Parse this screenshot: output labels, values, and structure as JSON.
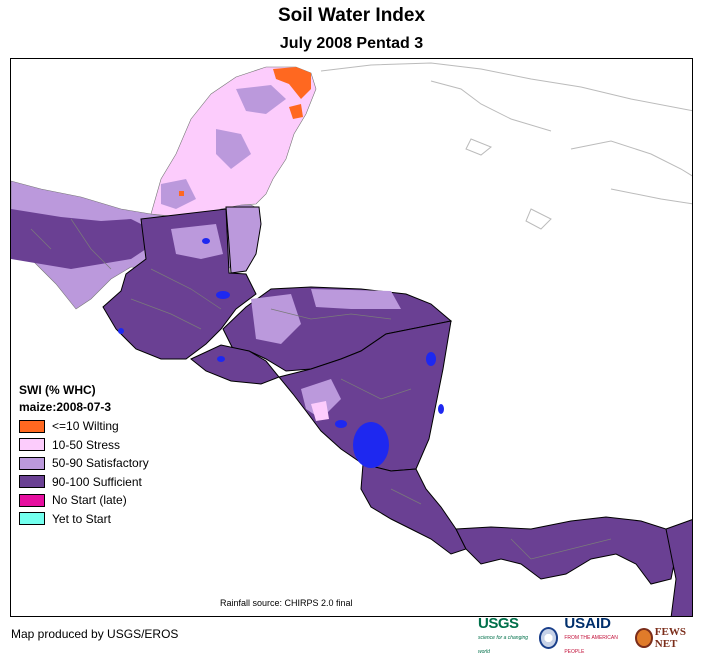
{
  "title": "Soil Water Index",
  "subtitle": "July 2008 Pentad 3",
  "legend": {
    "title": "SWI (% WHC)",
    "subtitle": "maize:2008-07-3",
    "items": [
      {
        "label": "<=10 Wilting",
        "color": "#ff6820"
      },
      {
        "label": "10-50 Stress",
        "color": "#fcccfc"
      },
      {
        "label": "50-90 Satisfactory",
        "color": "#bb99dc"
      },
      {
        "label": "90-100 Sufficient",
        "color": "#6a4093"
      },
      {
        "label": "No Start (late)",
        "color": "#e60e9f"
      },
      {
        "label": "Yet to Start",
        "color": "#73ffee"
      }
    ]
  },
  "source": "Rainfall source: CHIRPS 2.0 final",
  "credit": "Map produced by USGS/EROS",
  "logos": {
    "usgs": "USGS",
    "usgs_tag": "science for a changing world",
    "usaid": "USAID",
    "usaid_tag": "FROM THE AMERICAN PEOPLE",
    "fews": "FEWS NET"
  },
  "colors": {
    "water_blue": "#1e28f0",
    "border": "#000000",
    "admin": "#7a7a7a",
    "coast_outline": "#bbbbbb"
  }
}
